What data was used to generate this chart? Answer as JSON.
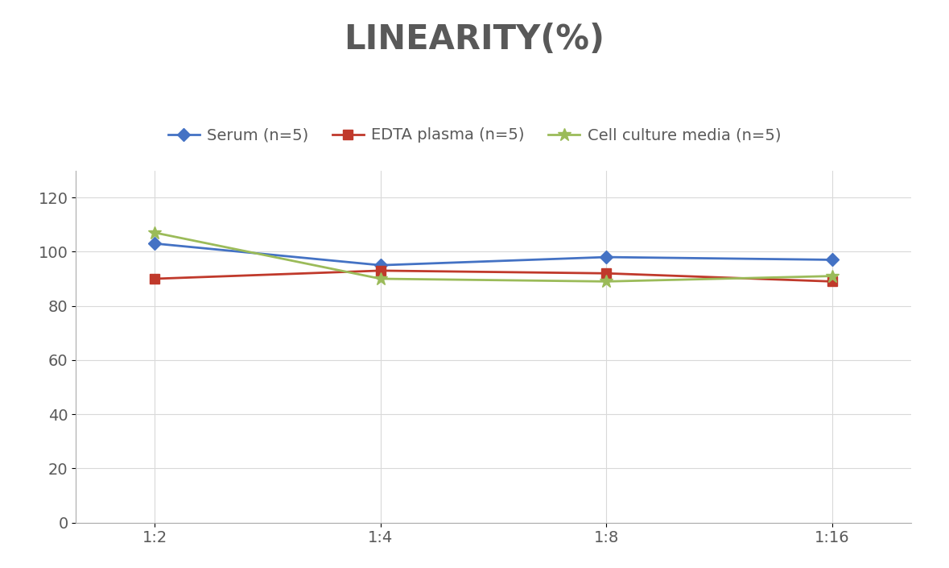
{
  "title": "LINEARITY(%)",
  "title_fontsize": 30,
  "title_fontweight": "bold",
  "title_color": "#595959",
  "x_labels": [
    "1:2",
    "1:4",
    "1:8",
    "1:16"
  ],
  "x_positions": [
    0,
    1,
    2,
    3
  ],
  "ylim": [
    0,
    130
  ],
  "yticks": [
    0,
    20,
    40,
    60,
    80,
    100,
    120
  ],
  "series": [
    {
      "label": "Serum (n=5)",
      "values": [
        103,
        95,
        98,
        97
      ],
      "color": "#4472C4",
      "marker": "D",
      "marker_size": 8,
      "linewidth": 2.0
    },
    {
      "label": "EDTA plasma (n=5)",
      "values": [
        90,
        93,
        92,
        89
      ],
      "color": "#C0392B",
      "marker": "s",
      "marker_size": 8,
      "linewidth": 2.0
    },
    {
      "label": "Cell culture media (n=5)",
      "values": [
        107,
        90,
        89,
        91
      ],
      "color": "#9BBB59",
      "marker": "*",
      "marker_size": 12,
      "linewidth": 2.0
    }
  ],
  "legend_fontsize": 14,
  "tick_fontsize": 14,
  "grid_color": "#D9D9D9",
  "background_color": "#FFFFFF",
  "spine_color": "#AAAAAA"
}
